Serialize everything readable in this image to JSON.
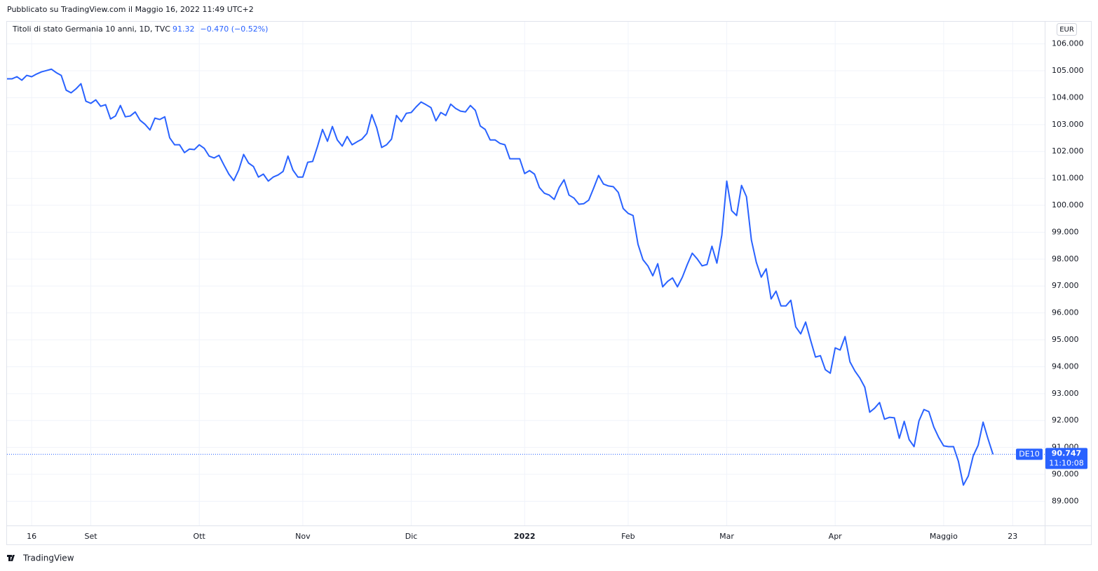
{
  "header": {
    "published": "Pubblicato su TradingView.com il Maggio 16, 2022 11:49 UTC+2",
    "symbol": "Titoli di stato Germania 10 anni, 1D, TVC",
    "change": "−0.470 (−0.52%)",
    "currency": "EUR",
    "ticker": "DE10",
    "time": "11:10:08"
  },
  "footer": {
    "brand": "TradingView"
  },
  "chart_data": {
    "type": "line",
    "grid": true,
    "series": [
      {
        "name": "DE10",
        "color": "#2962ff",
        "values": [
          104.7,
          104.7,
          104.78,
          104.65,
          104.83,
          104.78,
          104.88,
          104.96,
          105.01,
          105.06,
          104.93,
          104.83,
          104.28,
          104.18,
          104.33,
          104.52,
          103.87,
          103.79,
          103.92,
          103.68,
          103.74,
          103.21,
          103.32,
          103.71,
          103.29,
          103.32,
          103.47,
          103.16,
          103.01,
          102.8,
          103.24,
          103.19,
          103.29,
          102.51,
          102.25,
          102.25,
          101.96,
          102.09,
          102.07,
          102.25,
          102.12,
          101.83,
          101.76,
          101.86,
          101.5,
          101.16,
          100.92,
          101.31,
          101.89,
          101.57,
          101.44,
          101.05,
          101.16,
          100.9,
          101.05,
          101.13,
          101.26,
          101.83,
          101.31,
          101.05,
          101.05,
          101.6,
          101.63,
          102.2,
          102.82,
          102.38,
          102.93,
          102.43,
          102.2,
          102.56,
          102.25,
          102.36,
          102.46,
          102.67,
          103.37,
          102.88,
          102.15,
          102.25,
          102.46,
          103.34,
          103.11,
          103.42,
          103.45,
          103.66,
          103.84,
          103.74,
          103.63,
          103.14,
          103.45,
          103.34,
          103.76,
          103.6,
          103.5,
          103.47,
          103.71,
          103.53,
          102.95,
          102.82,
          102.43,
          102.43,
          102.3,
          102.25,
          101.73,
          101.73,
          101.73,
          101.18,
          101.29,
          101.16,
          100.66,
          100.45,
          100.38,
          100.22,
          100.66,
          100.95,
          100.38,
          100.27,
          100.04,
          100.06,
          100.19,
          100.64,
          101.11,
          100.79,
          100.72,
          100.69,
          100.48,
          99.88,
          99.7,
          99.62,
          98.55,
          97.98,
          97.75,
          97.38,
          97.83,
          96.97,
          97.17,
          97.3,
          96.97,
          97.33,
          97.8,
          98.22,
          98.01,
          97.75,
          97.8,
          98.48,
          97.85,
          98.89,
          100.9,
          99.8,
          99.62,
          100.74,
          100.32,
          98.71,
          97.88,
          97.33,
          97.64,
          96.52,
          96.81,
          96.26,
          96.26,
          96.47,
          95.48,
          95.22,
          95.66,
          94.99,
          94.36,
          94.41,
          93.89,
          93.76,
          94.7,
          94.62,
          95.12,
          94.18,
          93.84,
          93.58,
          93.24,
          92.31,
          92.46,
          92.67,
          92.05,
          92.12,
          92.1,
          91.34,
          91.97,
          91.29,
          91.03,
          91.99,
          92.41,
          92.33,
          91.76,
          91.37,
          91.06,
          91.03,
          91.03,
          90.48,
          89.6,
          89.94,
          90.69,
          91.08,
          91.94,
          91.32,
          90.747
        ]
      }
    ],
    "xlim": [
      0,
      210.5
    ],
    "xticks": [
      {
        "value": 5,
        "label": "16"
      },
      {
        "value": 17,
        "label": "Set"
      },
      {
        "value": 39,
        "label": "Ott"
      },
      {
        "value": 60,
        "label": "Nov"
      },
      {
        "value": 82,
        "label": "Dic"
      },
      {
        "value": 105,
        "label": "2022"
      },
      {
        "value": 126,
        "label": "Feb"
      },
      {
        "value": 146,
        "label": "Mar"
      },
      {
        "value": 168,
        "label": "Apr"
      },
      {
        "value": 190,
        "label": "Maggio"
      },
      {
        "value": 204,
        "label": "23"
      }
    ],
    "ylim": [
      88.1,
      106.85
    ],
    "yticks": [
      {
        "value": 89,
        "label": "89.000"
      },
      {
        "value": 90,
        "label": "90.000"
      },
      {
        "value": 91,
        "label": "91.000"
      },
      {
        "value": 92,
        "label": "92.000"
      },
      {
        "value": 93,
        "label": "93.000"
      },
      {
        "value": 94,
        "label": "94.000"
      },
      {
        "value": 95,
        "label": "95.000"
      },
      {
        "value": 96,
        "label": "96.000"
      },
      {
        "value": 97,
        "label": "97.000"
      },
      {
        "value": 98,
        "label": "98.000"
      },
      {
        "value": 99,
        "label": "99.000"
      },
      {
        "value": 100,
        "label": "100.000"
      },
      {
        "value": 101,
        "label": "101.000"
      },
      {
        "value": 102,
        "label": "102.000"
      },
      {
        "value": 103,
        "label": "103.000"
      },
      {
        "value": 104,
        "label": "104.000"
      },
      {
        "value": 105,
        "label": "105.000"
      },
      {
        "value": 106,
        "label": "106.000"
      }
    ]
  }
}
